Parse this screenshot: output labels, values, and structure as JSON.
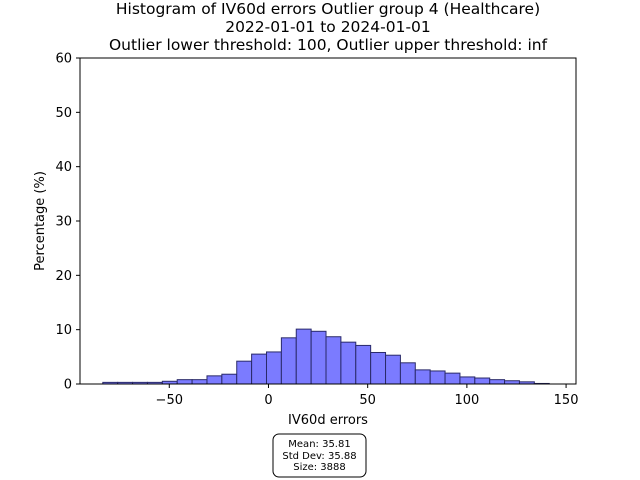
{
  "chart_data": {
    "type": "bar",
    "title_lines": [
      "Histogram of IV60d errors Outlier group 4 (Healthcare)",
      "2022-01-01 to 2024-01-01",
      "Outlier lower threshold: 100, Outlier upper threshold: inf"
    ],
    "xlabel": "IV60d errors",
    "ylabel": "Percentage (%)",
    "xlim": [
      -95,
      155
    ],
    "ylim": [
      0,
      60
    ],
    "xticks": [
      -50,
      0,
      50,
      100,
      150
    ],
    "xtick_labels": [
      "−50",
      "0",
      "50",
      "100",
      "150"
    ],
    "yticks": [
      0,
      10,
      20,
      30,
      40,
      50,
      60
    ],
    "grid": false,
    "bins": [
      {
        "x0": -83.5,
        "x1": -76.0,
        "value": 0.3
      },
      {
        "x0": -76.0,
        "x1": -68.5,
        "value": 0.3
      },
      {
        "x0": -68.5,
        "x1": -61.0,
        "value": 0.3
      },
      {
        "x0": -61.0,
        "x1": -53.5,
        "value": 0.3
      },
      {
        "x0": -53.5,
        "x1": -46.0,
        "value": 0.5
      },
      {
        "x0": -46.0,
        "x1": -38.5,
        "value": 0.8
      },
      {
        "x0": -38.5,
        "x1": -31.0,
        "value": 0.8
      },
      {
        "x0": -31.0,
        "x1": -23.5,
        "value": 1.5
      },
      {
        "x0": -23.5,
        "x1": -16.0,
        "value": 1.8
      },
      {
        "x0": -16.0,
        "x1": -8.5,
        "value": 4.2
      },
      {
        "x0": -8.5,
        "x1": -1.0,
        "value": 5.5
      },
      {
        "x0": -1.0,
        "x1": 6.5,
        "value": 5.9
      },
      {
        "x0": 6.5,
        "x1": 14.0,
        "value": 8.5
      },
      {
        "x0": 14.0,
        "x1": 21.5,
        "value": 10.1
      },
      {
        "x0": 21.5,
        "x1": 29.0,
        "value": 9.7
      },
      {
        "x0": 29.0,
        "x1": 36.5,
        "value": 8.7
      },
      {
        "x0": 36.5,
        "x1": 44.0,
        "value": 7.7
      },
      {
        "x0": 44.0,
        "x1": 51.5,
        "value": 7.1
      },
      {
        "x0": 51.5,
        "x1": 59.0,
        "value": 5.8
      },
      {
        "x0": 59.0,
        "x1": 66.5,
        "value": 5.3
      },
      {
        "x0": 66.5,
        "x1": 74.0,
        "value": 3.9
      },
      {
        "x0": 74.0,
        "x1": 81.5,
        "value": 2.6
      },
      {
        "x0": 81.5,
        "x1": 89.0,
        "value": 2.4
      },
      {
        "x0": 89.0,
        "x1": 96.5,
        "value": 2.0
      },
      {
        "x0": 96.5,
        "x1": 104.0,
        "value": 1.3
      },
      {
        "x0": 104.0,
        "x1": 111.5,
        "value": 1.1
      },
      {
        "x0": 111.5,
        "x1": 119.0,
        "value": 0.8
      },
      {
        "x0": 119.0,
        "x1": 126.5,
        "value": 0.6
      },
      {
        "x0": 126.5,
        "x1": 134.0,
        "value": 0.4
      },
      {
        "x0": 134.0,
        "x1": 141.5,
        "value": 0.1
      }
    ],
    "bar_color": "#7b7bff",
    "bar_edge_color": "#2a2a6a",
    "stats_box": {
      "lines": [
        "Mean: 35.81",
        "Std Dev: 35.88",
        "Size: 3888"
      ]
    }
  }
}
